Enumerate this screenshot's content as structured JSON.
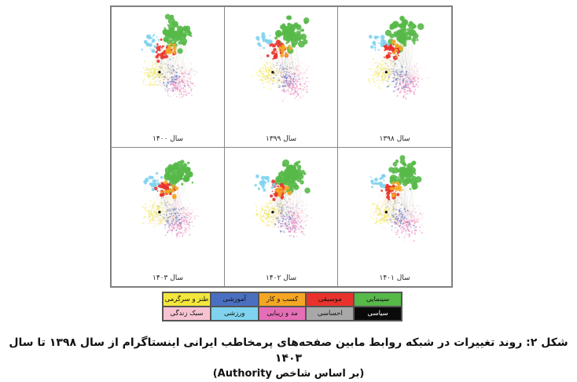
{
  "panels": [
    {
      "label": "سال ۱۳۹۸"
    },
    {
      "label": "سال ۱۳۹۹"
    },
    {
      "label": "سال ۱۴۰۰"
    },
    {
      "label": "سال ۱۴۰۱"
    },
    {
      "label": "سال ۱۴۰۲"
    },
    {
      "label": "سال ۱۴۰۳"
    }
  ],
  "legend": [
    {
      "label": "سینمایی",
      "color": "#56b948"
    },
    {
      "label": "موسیقی",
      "color": "#e8322b"
    },
    {
      "label": "کسب و کار",
      "color": "#f5a623"
    },
    {
      "label": "آموزشی",
      "color": "#4a6fc0"
    },
    {
      "label": "طنز و سرگرمی",
      "color": "#f3e63c"
    },
    {
      "label": "سیاسی",
      "color": "#0a0a0a"
    },
    {
      "label": "احساسی",
      "color": "#a8a8a8"
    },
    {
      "label": "مد و زیبایی",
      "color": "#e56fb7"
    },
    {
      "label": "ورزشی",
      "color": "#7fd3ee"
    },
    {
      "label": "سبک زندگی",
      "color": "#f7c3d3"
    }
  ],
  "caption": {
    "line1": "شکل ۲: روند تغییرات در شبکه روابط مابین صفحه‌های پرمخاطب ایرانی اینستاگرام از سال ۱۳۹۸ تا سال ۱۴۰۳",
    "line2": "(بر اساس شاخص Authority)"
  }
}
